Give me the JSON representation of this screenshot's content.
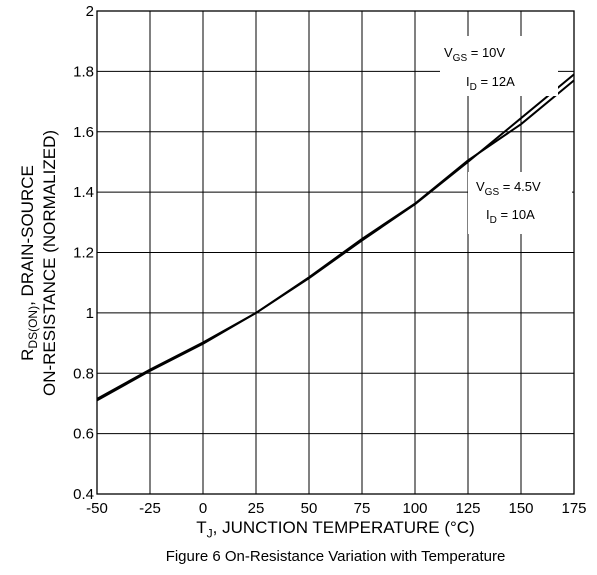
{
  "chart_data": {
    "type": "line",
    "caption": "Figure 6 On-Resistance Variation with Temperature",
    "xlabel": {
      "main": "T",
      "sub": "J",
      "rest": ", JUNCTION TEMPERATURE (°C)"
    },
    "ylabel": {
      "line1": {
        "main": "R",
        "sub": "DS(ON)",
        "rest": ", DRAIN-SOURCE"
      },
      "line2": "ON-RESISTANCE (NORMALIZED)"
    },
    "xlim": [
      -50,
      175
    ],
    "ylim": [
      0.4,
      2.0
    ],
    "x_ticks": [
      -50,
      -25,
      0,
      25,
      50,
      75,
      100,
      125,
      150,
      175
    ],
    "y_ticks": [
      0.4,
      0.6,
      0.8,
      1.0,
      1.2,
      1.4,
      1.6,
      1.8,
      2.0
    ],
    "x_tick_labels": [
      "-50",
      "-25",
      "0",
      "25",
      "50",
      "75",
      "100",
      "125",
      "150",
      "175"
    ],
    "y_tick_labels": [
      "0.4",
      "0.6",
      "0.8",
      "1",
      "1.2",
      "1.4",
      "1.6",
      "1.8",
      "2"
    ],
    "grid": true,
    "series": [
      {
        "id": "vgs10",
        "x": [
          -50,
          -25,
          0,
          25,
          50,
          75,
          100,
          125,
          150,
          175
        ],
        "y": [
          0.715,
          0.812,
          0.902,
          1.0,
          1.115,
          1.24,
          1.36,
          1.5,
          1.645,
          1.79
        ]
      },
      {
        "id": "vgs45",
        "x": [
          -50,
          -25,
          0,
          25,
          50,
          75,
          100,
          125,
          150,
          175
        ],
        "y": [
          0.71,
          0.808,
          0.898,
          1.0,
          1.118,
          1.245,
          1.362,
          1.505,
          1.625,
          1.77
        ]
      }
    ],
    "annotations": [
      {
        "id": "vgs10",
        "vgs_label": "V",
        "vgs_sub": "GS",
        "vgs_value": " = 10V",
        "id_label": "I",
        "id_sub": "D",
        "id_value": " = 12A"
      },
      {
        "id": "vgs45",
        "vgs_label": "V",
        "vgs_sub": "GS",
        "vgs_value": " = 4.5V",
        "id_label": "I",
        "id_sub": "D",
        "id_value": " = 10A"
      }
    ]
  }
}
